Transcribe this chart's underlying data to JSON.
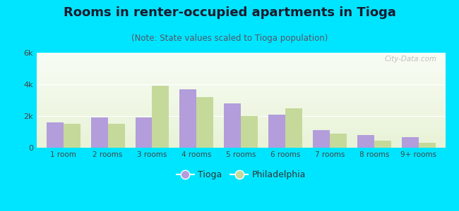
{
  "title": "Rooms in renter-occupied apartments in Tioga",
  "subtitle": "(Note: State values scaled to Tioga population)",
  "categories": [
    "1 room",
    "2 rooms",
    "3 rooms",
    "4 rooms",
    "5 rooms",
    "6 rooms",
    "7 rooms",
    "8 rooms",
    "9+ rooms"
  ],
  "tioga_values": [
    1600,
    1900,
    1900,
    3700,
    2800,
    2100,
    1100,
    800,
    650
  ],
  "philadelphia_values": [
    1500,
    1500,
    3900,
    3200,
    2000,
    2500,
    900,
    450,
    300
  ],
  "tioga_color": "#b39ddb",
  "philadelphia_color": "#c5d99a",
  "background_outer": "#00e5ff",
  "ylim": [
    0,
    6000
  ],
  "yticks": [
    0,
    2000,
    4000,
    6000
  ],
  "ytick_labels": [
    "0",
    "2k",
    "4k",
    "6k"
  ],
  "bar_width": 0.38,
  "title_fontsize": 13,
  "subtitle_fontsize": 8.5,
  "legend_tioga": "Tioga",
  "legend_philadelphia": "Philadelphia",
  "watermark": "City-Data.com"
}
